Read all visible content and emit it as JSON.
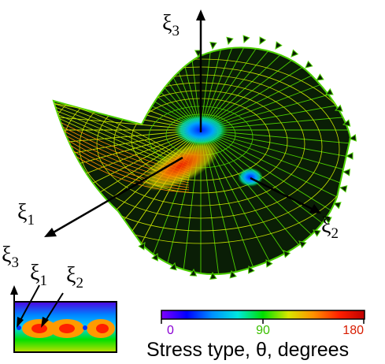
{
  "main_axes": {
    "xi3": {
      "base": "ξ",
      "sub": "3"
    },
    "xi1": {
      "base": "ξ",
      "sub": "1"
    },
    "xi2": {
      "base": "ξ",
      "sub": "2"
    }
  },
  "inset_axes": {
    "xi3": {
      "base": "ξ",
      "sub": "3"
    },
    "xi1": {
      "base": "ξ",
      "sub": "1"
    },
    "xi2": {
      "base": "ξ",
      "sub": "2"
    }
  },
  "colorbar": {
    "ticks": [
      {
        "label": "0",
        "color": "#8a00d4"
      },
      {
        "label": "90",
        "color": "#3cc000"
      },
      {
        "label": "180",
        "color": "#d81c00"
      }
    ],
    "caption": "Stress type, θ, degrees",
    "gradient": [
      "#8000ff",
      "#0000ff",
      "#0090ff",
      "#00e8e0",
      "#00e000",
      "#d8e800",
      "#ff9000",
      "#ff2000",
      "#c00000"
    ]
  },
  "colors": {
    "surface_fill": "#0a1e06",
    "mesh_green": "#4cd000",
    "mesh_yellow": "#c8e400",
    "mesh_orange": "#ff8a00",
    "hot_red": "#e81800",
    "cold_blue": "#0030ff"
  }
}
